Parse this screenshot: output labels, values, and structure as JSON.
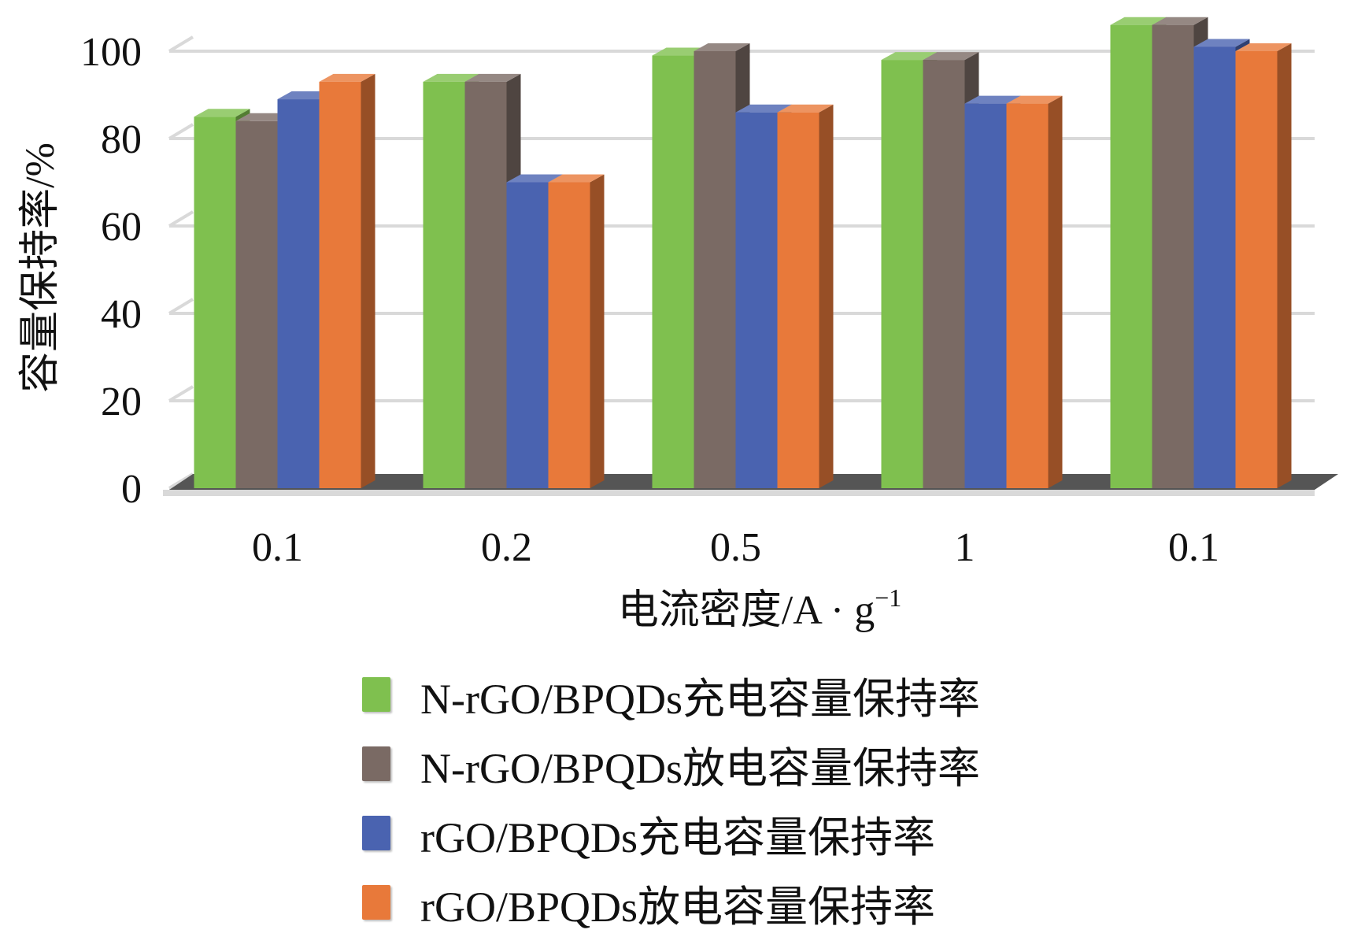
{
  "chart_data": {
    "type": "bar",
    "style": "3d-clustered",
    "categories": [
      "0.1",
      "0.2",
      "0.5",
      "1",
      "0.1"
    ],
    "ylim": [
      0,
      100
    ],
    "yticks": [
      "0",
      "20",
      "40",
      "60",
      "80",
      "100"
    ],
    "ylabel": "容量保持率/%",
    "xlabel": "电流密度/A · g",
    "xlabel_sup": "−1",
    "series": [
      {
        "name": "N-rGO/BPQDs充电容量保持率",
        "color": "#7fc04f",
        "values": [
          85,
          93,
          99,
          98,
          106
        ]
      },
      {
        "name": "N-rGO/BPQDs放电容量保持率",
        "color": "#7a6a64",
        "values": [
          84,
          93,
          100,
          98,
          106
        ]
      },
      {
        "name": "rGO/BPQDs充电容量保持率",
        "color": "#4a63b0",
        "values": [
          89,
          70,
          86,
          88,
          101
        ]
      },
      {
        "name": "rGO/BPQDs放电容量保持率",
        "color": "#e8793a",
        "values": [
          93,
          70,
          86,
          88,
          100
        ]
      }
    ],
    "grid": true,
    "legend_position": "bottom"
  }
}
